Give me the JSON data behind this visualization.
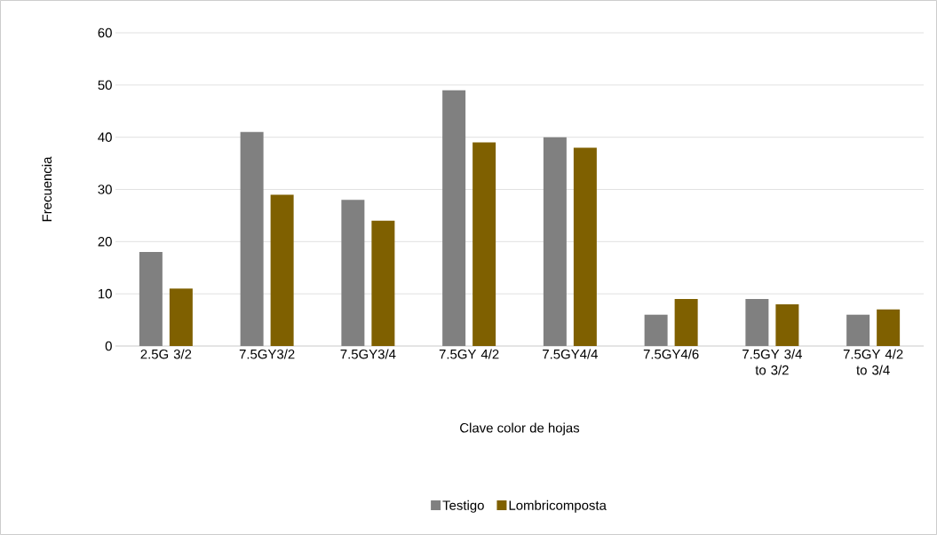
{
  "chart_data": {
    "type": "bar",
    "xlabel": "Clave color de hojas",
    "ylabel": "Frecuencia",
    "categories": [
      "2.5G 3/2",
      "7.5GY3/2",
      "7.5GY3/4",
      "7.5GY 4/2",
      "7.5GY4/4",
      "7.5GY4/6",
      "7.5GY 3/4 to 3/2",
      "7.5GY 4/2 to 3/4"
    ],
    "series": [
      {
        "name": "Testigo",
        "color": "#808080",
        "values": [
          18,
          41,
          28,
          49,
          40,
          6,
          9,
          6
        ]
      },
      {
        "name": "Lombricomposta",
        "color": "#7f6000",
        "values": [
          11,
          29,
          24,
          39,
          38,
          9,
          8,
          7
        ]
      }
    ],
    "ylim": [
      0,
      60
    ],
    "yticks": [
      0,
      10,
      20,
      30,
      40,
      50,
      60
    ],
    "grid": "y",
    "legend": "bottom"
  }
}
